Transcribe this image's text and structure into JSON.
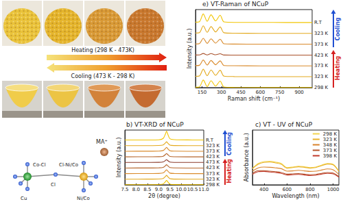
{
  "photos": {
    "heating_label": "Heating (298 K - 473K)",
    "cooling_label": "Cooling (473 K - 298 K)"
  },
  "structure": {
    "ion": "MA⁺",
    "labels": [
      "Cu",
      "Co-Cl",
      "Cl-Ni/Co",
      "Cl",
      "Ni/Co"
    ]
  },
  "chart_data": [
    {
      "type": "line",
      "title": "b) VT-XRD of NCuP",
      "x_label": "2θ (degree)",
      "y_label": "Intensity (a.u.)",
      "x": [
        7.5,
        8.5,
        9.0,
        9.2,
        9.3,
        9.35,
        9.4,
        9.5,
        9.7,
        10.5,
        11.0
      ],
      "series": [
        {
          "name": "298 K",
          "color": "#f2c500",
          "values": [
            0.02,
            0.02,
            0.05,
            0.16,
            0.56,
            0.8,
            0.56,
            0.12,
            0.04,
            0.02,
            0.02
          ]
        },
        {
          "name": "323 K",
          "color": "#e3a91c",
          "values": [
            1.01,
            1.02,
            1.04,
            1.14,
            1.49,
            1.7,
            1.49,
            1.1,
            1.03,
            1.01,
            1.01
          ]
        },
        {
          "name": "373 K",
          "color": "#d98a2b",
          "values": [
            2.01,
            2.02,
            2.04,
            2.14,
            2.49,
            2.7,
            2.49,
            2.1,
            2.03,
            2.01,
            2.01
          ]
        },
        {
          "name": "423 K",
          "color": "#b5652a",
          "values": [
            3.01,
            3.02,
            3.04,
            3.12,
            3.42,
            3.6,
            3.42,
            3.09,
            3.03,
            3.01,
            3.01
          ]
        },
        {
          "name": "473 K",
          "color": "#8b3a2a",
          "values": [
            4.01,
            4.02,
            4.03,
            4.1,
            4.35,
            4.5,
            4.35,
            4.08,
            4.02,
            4.01,
            4.01
          ]
        },
        {
          "name": "423 K",
          "color": "#b5652a",
          "values": [
            5.01,
            5.02,
            5.04,
            5.12,
            5.42,
            5.6,
            5.42,
            5.09,
            5.03,
            5.01,
            5.01
          ]
        },
        {
          "name": "373 K",
          "color": "#d98a2b",
          "values": [
            6.01,
            6.02,
            6.04,
            6.14,
            6.49,
            6.7,
            6.49,
            6.1,
            6.03,
            6.01,
            6.01
          ]
        },
        {
          "name": "323 K",
          "color": "#e3a91c",
          "values": [
            7.01,
            7.02,
            7.04,
            7.14,
            7.49,
            7.7,
            7.49,
            7.1,
            7.03,
            7.01,
            7.01
          ]
        },
        {
          "name": "R.T",
          "color": "#f2c500",
          "values": [
            8.02,
            8.03,
            8.06,
            8.3,
            9.1,
            9.6,
            9.1,
            8.25,
            8.08,
            8.03,
            8.02
          ]
        }
      ],
      "xlim": [
        7.5,
        11.0
      ],
      "xticks": [
        7.5,
        {
          "value": 8,
          "label": "8.0"
        },
        8.5,
        {
          "value": 9,
          "label": "9.0"
        },
        9.5,
        {
          "value": 10,
          "label": "10.0"
        },
        10.5,
        {
          "value": 11,
          "label": "11.0"
        }
      ],
      "ylim": [
        0,
        9.8
      ],
      "tick_labels": "x",
      "grid": false,
      "annotations": [
        "Cooling",
        "Heating"
      ]
    },
    {
      "type": "line",
      "title": "e) VT-Raman of NCuP",
      "x_label": "Raman shift (cm⁻¹)",
      "y_label": "Intensity (a.u.)",
      "x": [
        100,
        130,
        160,
        190,
        220,
        255,
        290,
        320,
        400,
        600,
        800,
        1000
      ],
      "series": [
        {
          "name": "298 K",
          "color": "#f2c500",
          "values": [
            0.04,
            0.07,
            0.7,
            0.1,
            0.63,
            0.14,
            0.6,
            0.06,
            0.02,
            0.01,
            0.01,
            0.01
          ]
        },
        {
          "name": "323 K",
          "color": "#e3a91c",
          "values": [
            1.04,
            1.07,
            1.7,
            1.1,
            1.63,
            1.14,
            1.6,
            1.06,
            1.02,
            1.01,
            1.01,
            1.01
          ]
        },
        {
          "name": "373 K",
          "color": "#d98a2b",
          "values": [
            2.03,
            2.06,
            2.55,
            2.08,
            2.5,
            2.11,
            2.47,
            2.04,
            2.02,
            2.01,
            2.01,
            2.01
          ]
        },
        {
          "name": "423 K",
          "color": "#a8502a",
          "values": [
            3.01,
            3.02,
            3.15,
            3.02,
            3.14,
            3.03,
            3.13,
            3.01,
            3.0,
            3.0,
            3.0,
            3.0
          ]
        },
        {
          "name": "373 K",
          "color": "#d98a2b",
          "values": [
            4.03,
            4.06,
            4.55,
            4.08,
            4.5,
            4.11,
            4.47,
            4.04,
            4.02,
            4.01,
            4.01,
            4.01
          ]
        },
        {
          "name": "323 K",
          "color": "#e3a91c",
          "values": [
            5.04,
            5.07,
            5.7,
            5.1,
            5.63,
            5.14,
            5.6,
            5.06,
            5.02,
            5.01,
            5.01,
            5.01
          ]
        },
        {
          "name": "R.T",
          "color": "#f2c500",
          "values": [
            6.04,
            6.08,
            6.8,
            6.12,
            6.72,
            6.16,
            6.68,
            6.06,
            6.02,
            6.02,
            6.01,
            6.01
          ]
        }
      ],
      "xlim": [
        100,
        1000
      ],
      "xticks": [
        150,
        300,
        450,
        600,
        750,
        900
      ],
      "ylim": [
        0,
        7.2
      ],
      "tick_labels": "x",
      "grid": false,
      "annotations": [
        "Cooling",
        "Heating"
      ]
    },
    {
      "type": "line",
      "title": "c) VT - UV of NCuP",
      "x_label": "Wavelength (nm)",
      "y_label": "Absorbance (a.u.)",
      "x": [
        300,
        350,
        400,
        450,
        500,
        550,
        600,
        650,
        700,
        750,
        800,
        850,
        900,
        950,
        1000,
        1050
      ],
      "series": [
        {
          "name": "298 K",
          "color": "#f3d54e",
          "values": [
            6,
            7.8,
            8.5,
            8.6,
            8.3,
            7.8,
            6.3,
            6.5,
            6.8,
            6.6,
            6.3,
            6.5,
            7.2,
            7.8,
            7.5,
            5
          ]
        },
        {
          "name": "323 K",
          "color": "#e8b22a",
          "values": [
            5.9,
            7.5,
            8.2,
            8.3,
            8,
            7.5,
            6.1,
            6.3,
            6.6,
            6.4,
            6.1,
            6.3,
            7,
            7.6,
            7.3,
            4.9
          ]
        },
        {
          "name": "348 K",
          "color": "#d9822b",
          "values": [
            5,
            6.2,
            6.5,
            6.4,
            6.2,
            5.9,
            5,
            5.1,
            5.3,
            5.1,
            4.9,
            5,
            5.4,
            5.8,
            5.5,
            3.8
          ]
        },
        {
          "name": "373 K",
          "color": "#b5542a",
          "values": [
            4.2,
            5.2,
            5.2,
            5,
            4.8,
            4.5,
            3.9,
            4,
            4.1,
            3.9,
            3.7,
            3.8,
            4.2,
            4.5,
            4.3,
            3
          ]
        },
        {
          "name": "398 K",
          "color": "#c0392b",
          "values": [
            3.8,
            4.8,
            4.9,
            4.7,
            4.5,
            4.2,
            3.6,
            3.7,
            3.8,
            3.6,
            3.4,
            3.5,
            3.9,
            4.2,
            4,
            2.8
          ]
        }
      ],
      "xlim": [
        300,
        1050
      ],
      "xticks": [
        400,
        600,
        800,
        1000
      ],
      "ylim": [
        0,
        20
      ],
      "tick_labels": "x",
      "grid": false,
      "legend": "upper right"
    }
  ]
}
